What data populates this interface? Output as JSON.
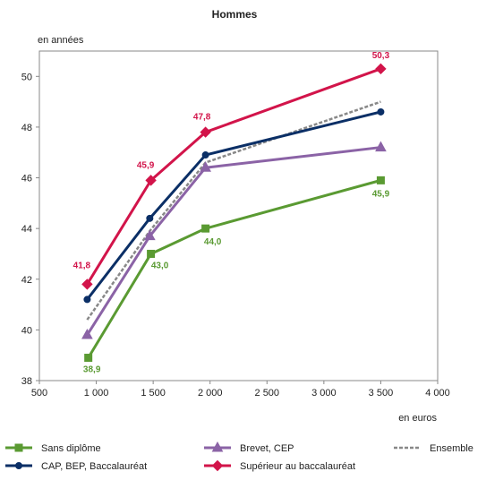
{
  "chart_data": {
    "type": "line",
    "title": "Hommes",
    "ylabel": "en années",
    "xlabel": "en euros",
    "x_ticks": [
      "500",
      "1 000",
      "1 500",
      "2 000",
      "2 500",
      "3 000",
      "3 500",
      "4 000"
    ],
    "y_ticks": [
      "38",
      "40",
      "42",
      "44",
      "46",
      "48",
      "50"
    ],
    "x_tick_values": [
      500,
      1000,
      1500,
      2000,
      2500,
      3000,
      3500,
      4000
    ],
    "y_tick_values": [
      38,
      40,
      42,
      44,
      46,
      48,
      50
    ],
    "xlim": [
      500,
      4000
    ],
    "ylim": [
      38,
      51
    ],
    "grid": false,
    "legend_position": "bottom",
    "series": [
      {
        "name": "Sans diplôme",
        "color": "#5a9a32",
        "marker": "square",
        "dashed": false,
        "x": [
          930,
          1480,
          1960,
          3500
        ],
        "y": [
          38.9,
          43.0,
          44.0,
          45.9
        ],
        "labels": [
          "38,9",
          "43,0",
          "44,0",
          "45,9"
        ]
      },
      {
        "name": "CAP, BEP, Baccalauréat",
        "color": "#0b2f66",
        "marker": "circle",
        "dashed": false,
        "x": [
          920,
          1470,
          1960,
          3500
        ],
        "y": [
          41.2,
          44.4,
          46.9,
          48.6
        ],
        "labels": []
      },
      {
        "name": "Brevet, CEP",
        "color": "#8b63a6",
        "marker": "triangle",
        "dashed": false,
        "x": [
          920,
          1470,
          1960,
          3500
        ],
        "y": [
          39.8,
          43.7,
          46.4,
          47.2
        ],
        "labels": []
      },
      {
        "name": "Supérieur au baccalauréat",
        "color": "#d2144a",
        "marker": "diamond",
        "dashed": false,
        "x": [
          920,
          1480,
          1960,
          3500
        ],
        "y": [
          41.8,
          45.9,
          47.8,
          50.3
        ],
        "labels": [
          "41,8",
          "45,9",
          "47,8",
          "50,3"
        ]
      },
      {
        "name": "Ensemble",
        "color": "#888888",
        "marker": "none",
        "dashed": true,
        "x": [
          920,
          1470,
          1960,
          3500
        ],
        "y": [
          40.4,
          43.9,
          46.6,
          49.0
        ],
        "labels": []
      }
    ]
  }
}
